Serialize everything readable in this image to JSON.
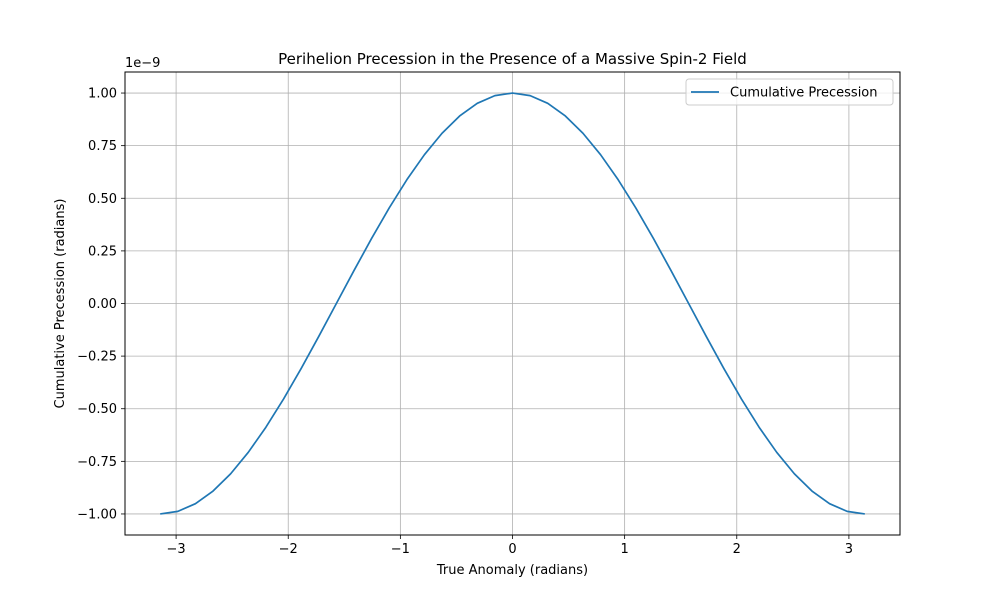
{
  "chart_data": {
    "type": "line",
    "title": "Perihelion Precession in the Presence of a Massive Spin-2 Field",
    "xlabel": "True Anomaly (radians)",
    "ylabel": "Cumulative Precession (radians)",
    "y_offset_label": "1e−9",
    "xlim": [
      -3.4557,
      3.4557
    ],
    "ylim": [
      -1.1,
      1.1
    ],
    "x_ticks": [
      -3,
      -2,
      -1,
      0,
      1,
      2,
      3
    ],
    "x_tick_labels": [
      "−3",
      "−2",
      "−1",
      "0",
      "1",
      "2",
      "3"
    ],
    "y_ticks": [
      -1.0,
      -0.75,
      -0.5,
      -0.25,
      0.0,
      0.25,
      0.5,
      0.75,
      1.0
    ],
    "y_tick_labels": [
      "−1.00",
      "−0.75",
      "−0.50",
      "−0.25",
      "0.00",
      "0.25",
      "0.50",
      "0.75",
      "1.00"
    ],
    "grid": true,
    "legend_position": "top-right",
    "series": [
      {
        "name": "Cumulative Precession",
        "color": "#1f77b4",
        "x": [
          -3.1416,
          -2.9845,
          -2.8274,
          -2.6704,
          -2.5133,
          -2.3562,
          -2.1991,
          -2.042,
          -1.885,
          -1.7279,
          -1.5708,
          -1.4137,
          -1.2566,
          -1.0996,
          -0.9425,
          -0.7854,
          -0.6283,
          -0.4712,
          -0.3142,
          -0.1571,
          0.0,
          0.1571,
          0.3142,
          0.4712,
          0.6283,
          0.7854,
          0.9425,
          1.0996,
          1.2566,
          1.4137,
          1.5708,
          1.7279,
          1.885,
          2.042,
          2.1991,
          2.3562,
          2.5133,
          2.6704,
          2.8274,
          2.9845,
          3.1416
        ],
        "y": [
          -1.0,
          -0.9877,
          -0.9511,
          -0.891,
          -0.809,
          -0.7071,
          -0.5878,
          -0.454,
          -0.309,
          -0.1564,
          0.0,
          0.1564,
          0.309,
          0.454,
          0.5878,
          0.7071,
          0.809,
          0.891,
          0.9511,
          0.9877,
          1.0,
          0.9877,
          0.9511,
          0.891,
          0.809,
          0.7071,
          0.5878,
          0.454,
          0.309,
          0.1564,
          0.0,
          -0.1564,
          -0.309,
          -0.454,
          -0.5878,
          -0.7071,
          -0.809,
          -0.891,
          -0.9511,
          -0.9877,
          -1.0
        ]
      }
    ]
  }
}
